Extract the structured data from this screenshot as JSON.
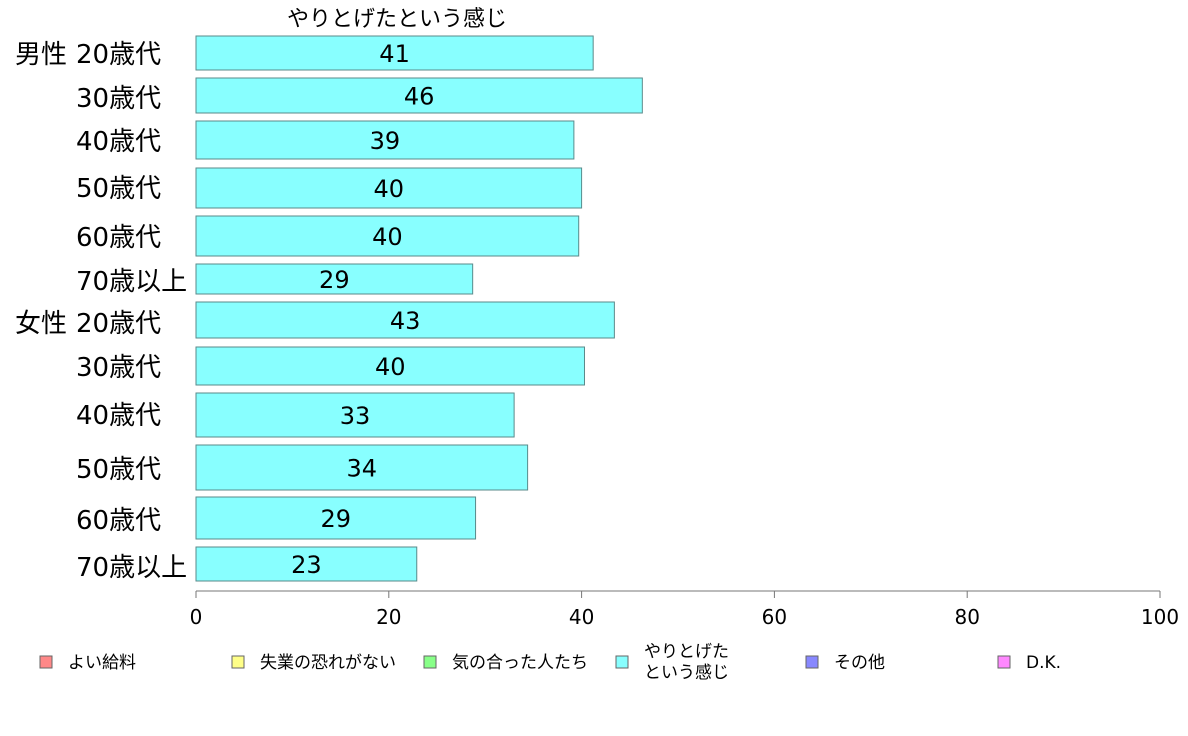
{
  "chart_data": {
    "type": "bar",
    "orientation": "horizontal",
    "title": "やりとげたという感じ",
    "categories": [
      "男性 20歳代",
      "30歳代",
      "40歳代",
      "50歳代",
      "60歳代",
      "70歳以上",
      "女性 20歳代",
      "30歳代",
      "40歳代",
      "50歳代",
      "60歳代",
      "70歳以上"
    ],
    "series": [
      {
        "name": "やりとげたという感じ",
        "color": "#88ffff",
        "values": [
          41.2,
          46.3,
          39.2,
          40.0,
          39.7,
          28.7,
          43.4,
          40.3,
          33.0,
          34.4,
          29.0,
          22.9
        ],
        "labels": [
          "41",
          "46",
          "39",
          "40",
          "40",
          "29",
          "43",
          "40",
          "33",
          "34",
          "29",
          "23"
        ]
      }
    ],
    "xlim": [
      0,
      100
    ],
    "xticks": [
      "0",
      "20",
      "40",
      "60",
      "80",
      "100"
    ],
    "grid": false,
    "legend_position": "bottom",
    "legend": [
      {
        "label": "よい給料",
        "color": "#ff8888"
      },
      {
        "label": "失業の恐れがない",
        "color": "#ffff88"
      },
      {
        "label": "気の合った人たち",
        "color": "#88ff88"
      },
      {
        "label": "やりとげた\nという感じ",
        "color": "#88ffff"
      },
      {
        "label": "その他",
        "color": "#8888ff"
      },
      {
        "label": "D.K.",
        "color": "#ff88ff"
      }
    ]
  }
}
